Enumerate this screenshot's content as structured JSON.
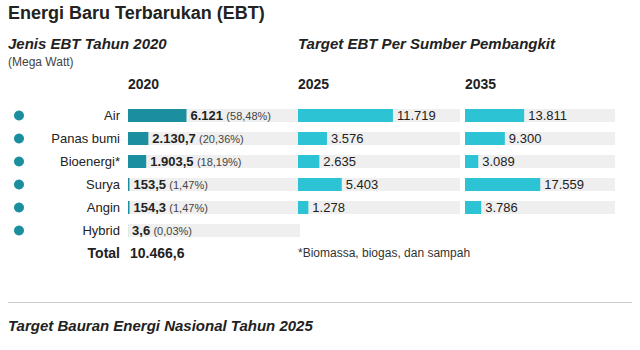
{
  "title": "Energi Baru Terbarukan (EBT)",
  "subtitle_left": "Jenis EBT Tahun 2020",
  "unit": "(Mega Watt)",
  "subtitle_right": "Target EBT Per Sumber Pembangkit",
  "total": {
    "label": "Total",
    "value_label": "10.466,6"
  },
  "footnote": "*Biomassa, biogas, dan sampah",
  "bottom_title": "Target Bauran Energi Nasional Tahun 2025",
  "chart_data": [
    {
      "type": "bar",
      "orientation": "horizontal",
      "title": "2020",
      "categories": [
        "Air",
        "Panas bumi",
        "Bioenergi*",
        "Surya",
        "Angin",
        "Hybrid"
      ],
      "values": [
        6121,
        2130.7,
        1903.5,
        153.5,
        154.3,
        3.6
      ],
      "value_labels": [
        "6.121",
        "2.130,7",
        "1.903,5",
        "153,5",
        "154,3",
        "3,6"
      ],
      "share_labels": [
        "(58,48%)",
        "(20,36%)",
        "(18,19%)",
        "(1,47%)",
        "(1,47%)",
        "(0,03%)"
      ],
      "color": "#1b8fa0",
      "xlim": [
        0,
        18000
      ],
      "data_labels": true,
      "tick_labels": "y",
      "grid": false
    },
    {
      "type": "bar",
      "orientation": "horizontal",
      "title": "2025",
      "categories": [
        "Air",
        "Panas bumi",
        "Bioenergi*",
        "Surya",
        "Angin",
        "Hybrid"
      ],
      "values": [
        11719,
        3576,
        2635,
        5403,
        1278,
        null
      ],
      "value_labels": [
        "11.719",
        "3.576",
        "2.635",
        "5.403",
        "1.278",
        null
      ],
      "color": "#2cc3d4",
      "xlim": [
        0,
        20000
      ],
      "data_labels": true,
      "tick_labels": false,
      "grid": false
    },
    {
      "type": "bar",
      "orientation": "horizontal",
      "title": "2035",
      "categories": [
        "Air",
        "Panas bumi",
        "Bioenergi*",
        "Surya",
        "Angin",
        "Hybrid"
      ],
      "values": [
        13811,
        9300,
        3089,
        17559,
        3786,
        null
      ],
      "value_labels": [
        "13.811",
        "9.300",
        "3.089",
        "17.559",
        "3.786",
        null
      ],
      "color": "#2cc3d4",
      "xlim": [
        0,
        35000
      ],
      "data_labels": true,
      "tick_labels": false,
      "grid": false
    }
  ]
}
